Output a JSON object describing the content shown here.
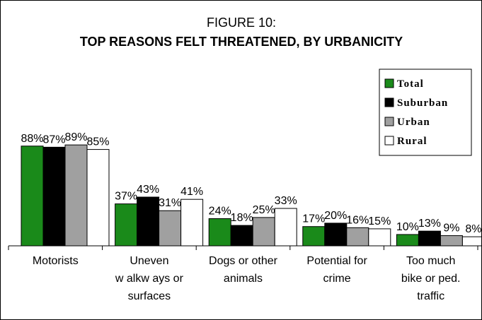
{
  "chart_data": {
    "type": "bar",
    "title": "FIGURE 10:",
    "subtitle": "TOP REASONS FELT THREATENED, BY URBANICITY",
    "categories": [
      [
        "Motorists"
      ],
      [
        "Uneven",
        "w alkw ays or",
        "surfaces"
      ],
      [
        "Dogs or other",
        "animals"
      ],
      [
        "Potential for",
        "crime"
      ],
      [
        "Too much",
        "bike or ped.",
        "traffic"
      ]
    ],
    "series": [
      {
        "name": "Total",
        "color": "#1a8a1a",
        "values": [
          88,
          37,
          24,
          17,
          10
        ]
      },
      {
        "name": "Suburban",
        "color": "#000000",
        "values": [
          87,
          43,
          18,
          20,
          13
        ]
      },
      {
        "name": "Urban",
        "color": "#a0a0a0",
        "values": [
          89,
          31,
          25,
          16,
          9
        ]
      },
      {
        "name": "Rural",
        "color": "#ffffff",
        "values": [
          85,
          41,
          33,
          15,
          8
        ]
      }
    ],
    "value_suffix": "%",
    "ylim": [
      0,
      100
    ],
    "legend_position": "top-right",
    "grid": false
  }
}
